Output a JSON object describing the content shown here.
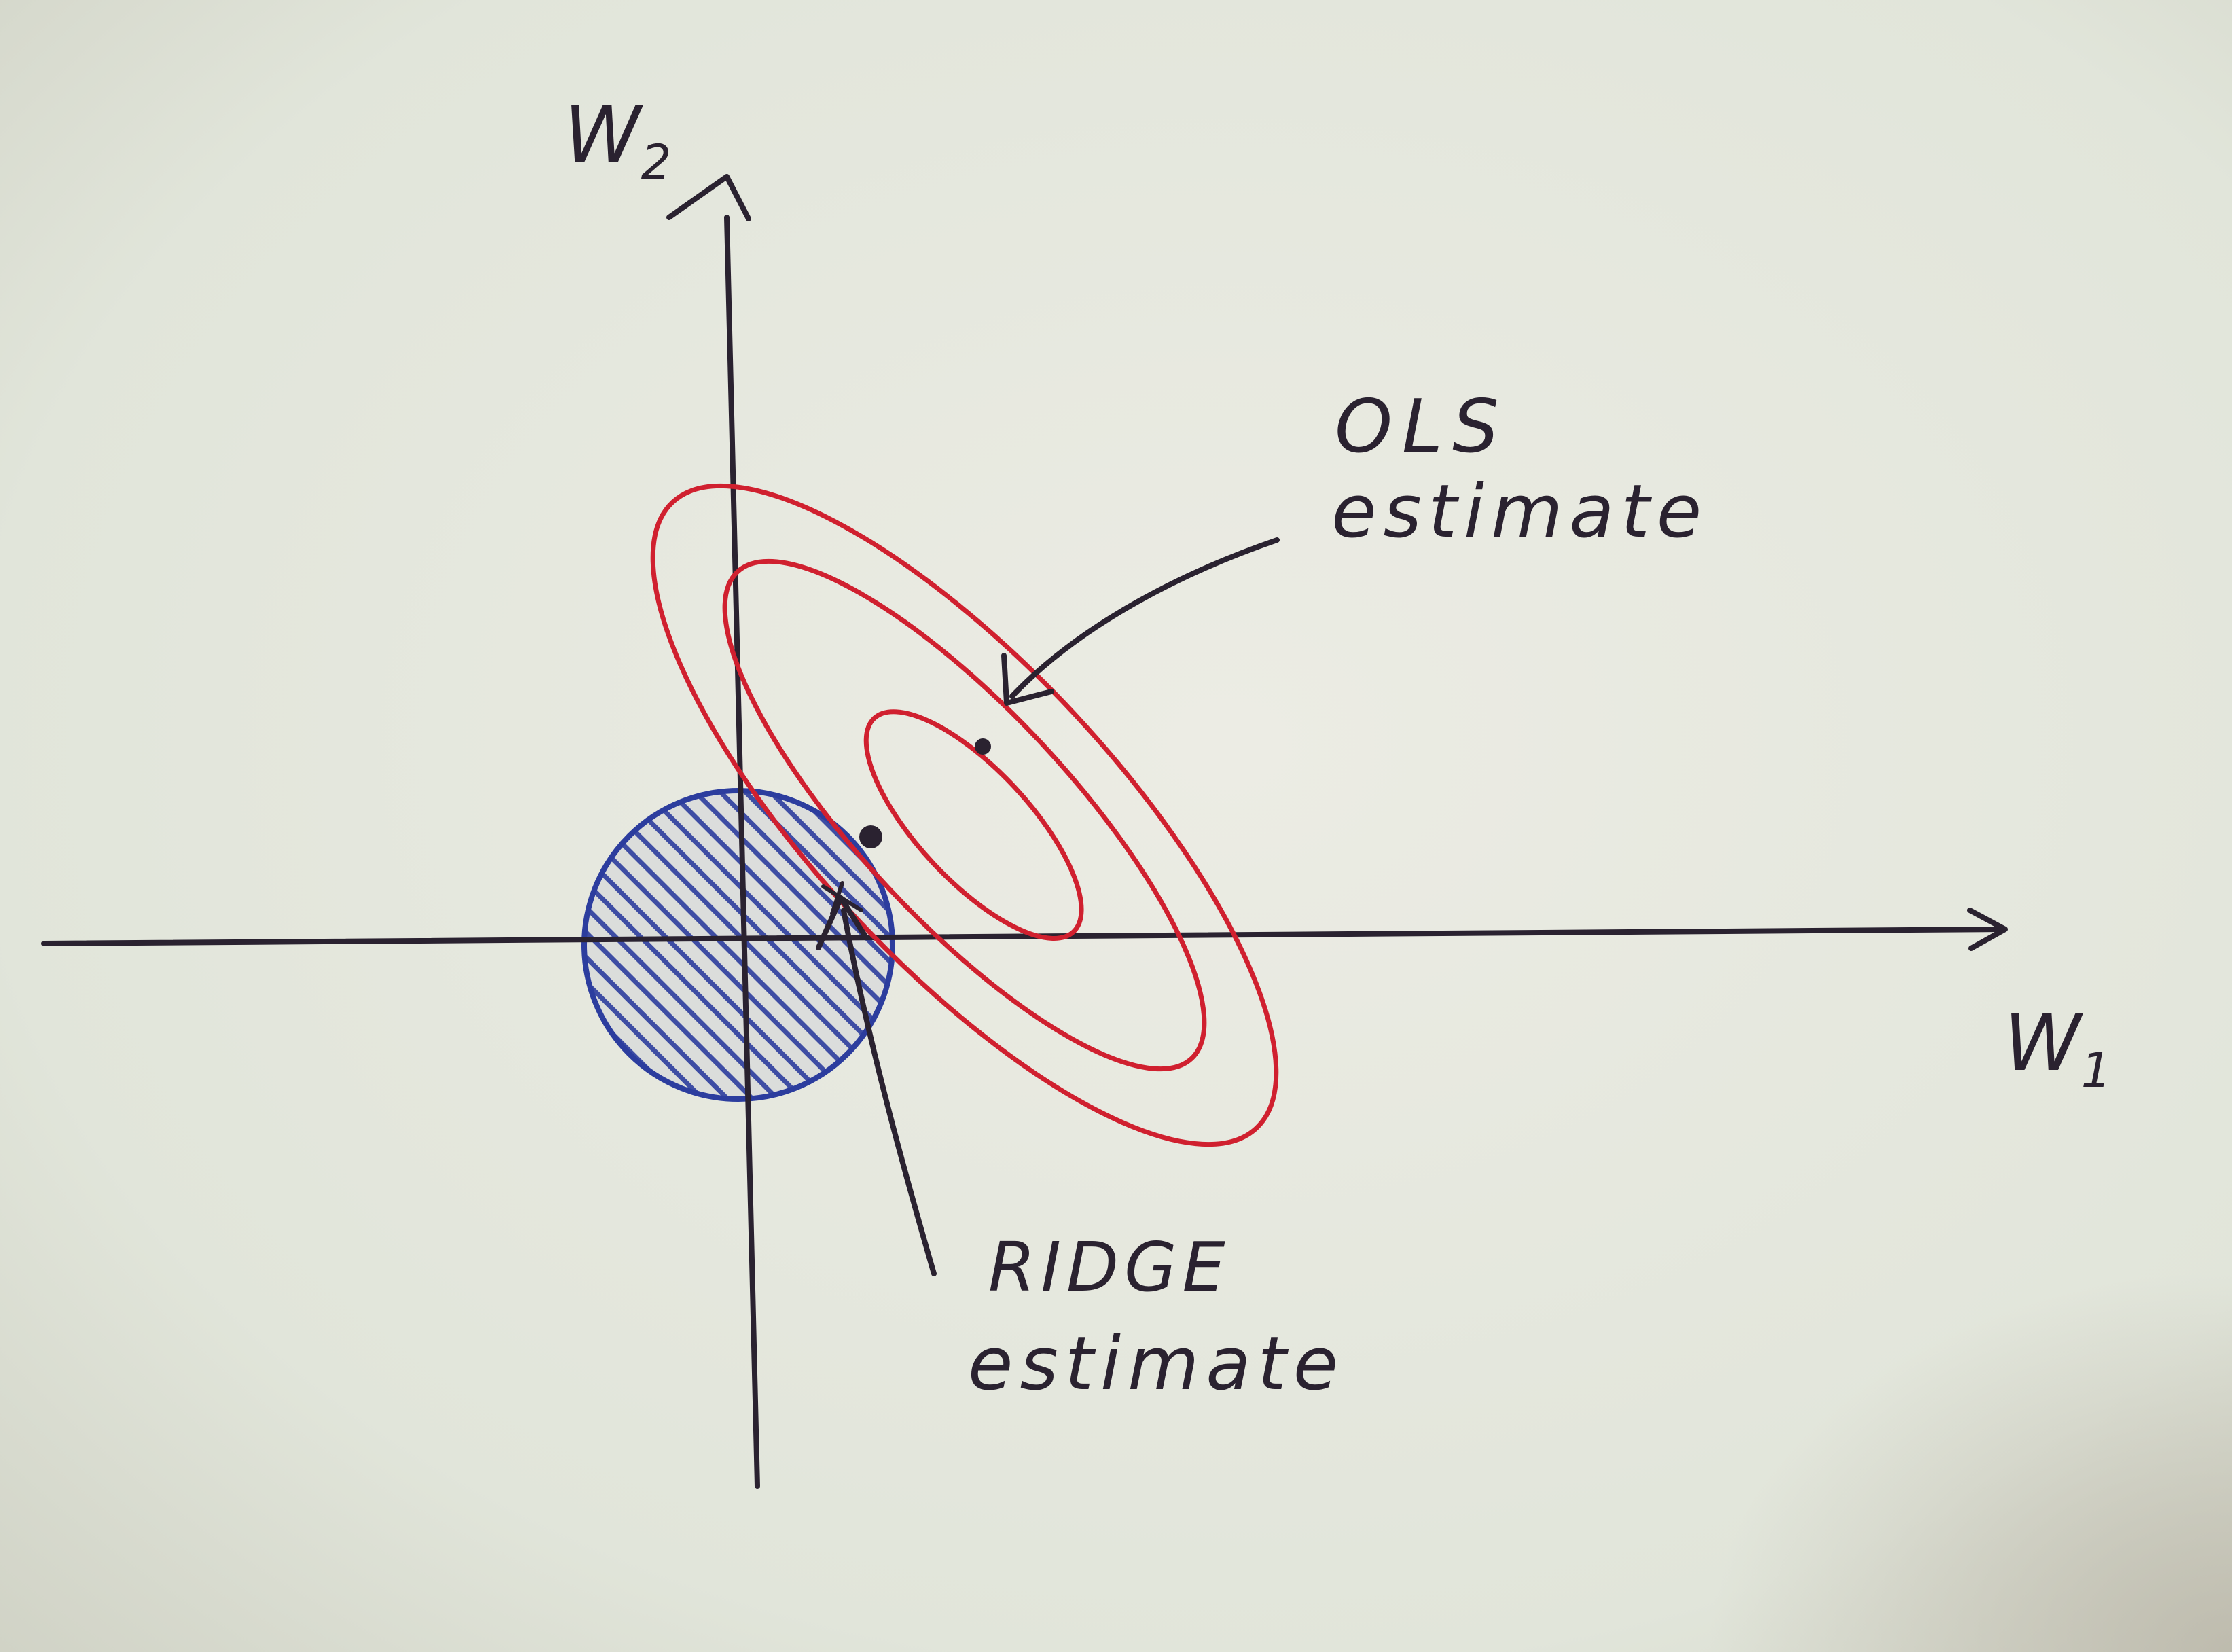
{
  "diagram": {
    "axes": {
      "x_label_base": "W",
      "x_label_sub": "1",
      "y_label_base": "W",
      "y_label_sub": "2"
    },
    "annotations": {
      "ols_line1": "OLS",
      "ols_line2": "estimate",
      "ridge_line1": "RIDGE",
      "ridge_line2": "estimate"
    },
    "colors": {
      "contour": "#d0202f",
      "constraint_region": "#2c3d9e",
      "ink": "#2a2230",
      "paper": "#e4e6dc"
    },
    "elements": {
      "contour_count": 3,
      "constraint_shape": "disk"
    }
  }
}
